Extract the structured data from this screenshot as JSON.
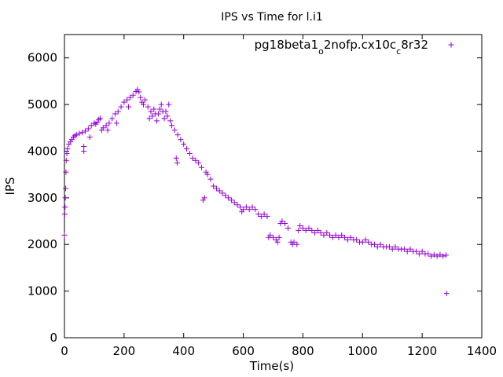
{
  "chart_data": {
    "type": "scatter",
    "title": "IPS vs Time for l.i1",
    "xlabel": "Time(s)",
    "ylabel": "IPS",
    "xlim": [
      0,
      1400
    ],
    "ylim": [
      0,
      6500
    ],
    "x_ticks": [
      0,
      200,
      400,
      600,
      800,
      1000,
      1200,
      1400
    ],
    "y_ticks": [
      0,
      1000,
      2000,
      3000,
      4000,
      5000,
      6000
    ],
    "grid": false,
    "legend_position": "top-right",
    "marker": "plus",
    "series": [
      {
        "name_parts": [
          {
            "text": "pg18beta1",
            "sub": false
          },
          {
            "text": "o",
            "sub": true
          },
          {
            "text": "2nofp.cx10c",
            "sub": false
          },
          {
            "text": "c",
            "sub": true
          },
          {
            "text": "8r32",
            "sub": false
          }
        ],
        "color": "#9400d3",
        "points": [
          [
            0,
            2200
          ],
          [
            1,
            2650
          ],
          [
            2,
            2800
          ],
          [
            3,
            3000
          ],
          [
            4,
            3200
          ],
          [
            5,
            3550
          ],
          [
            6,
            3800
          ],
          [
            8,
            3950
          ],
          [
            10,
            4050
          ],
          [
            15,
            4150
          ],
          [
            20,
            4200
          ],
          [
            25,
            4250
          ],
          [
            30,
            4300
          ],
          [
            35,
            4330
          ],
          [
            40,
            4350
          ],
          [
            50,
            4380
          ],
          [
            60,
            4400
          ],
          [
            65,
            4000
          ],
          [
            65,
            4100
          ],
          [
            70,
            4430
          ],
          [
            80,
            4480
          ],
          [
            85,
            4300
          ],
          [
            90,
            4550
          ],
          [
            100,
            4600
          ],
          [
            105,
            4580
          ],
          [
            110,
            4620
          ],
          [
            115,
            4680
          ],
          [
            120,
            4700
          ],
          [
            125,
            4450
          ],
          [
            130,
            4500
          ],
          [
            140,
            4550
          ],
          [
            145,
            4450
          ],
          [
            150,
            4600
          ],
          [
            160,
            4700
          ],
          [
            170,
            4800
          ],
          [
            175,
            4600
          ],
          [
            180,
            4850
          ],
          [
            190,
            4950
          ],
          [
            200,
            5050
          ],
          [
            210,
            5100
          ],
          [
            215,
            4950
          ],
          [
            220,
            5150
          ],
          [
            230,
            5200
          ],
          [
            240,
            5280
          ],
          [
            245,
            5320
          ],
          [
            250,
            5270
          ],
          [
            255,
            5150
          ],
          [
            260,
            5050
          ],
          [
            265,
            5000
          ],
          [
            270,
            5100
          ],
          [
            280,
            4950
          ],
          [
            285,
            4700
          ],
          [
            290,
            4850
          ],
          [
            295,
            4750
          ],
          [
            300,
            4900
          ],
          [
            305,
            4800
          ],
          [
            310,
            4650
          ],
          [
            315,
            4800
          ],
          [
            320,
            4900
          ],
          [
            325,
            5000
          ],
          [
            330,
            4850
          ],
          [
            335,
            4700
          ],
          [
            340,
            4850
          ],
          [
            345,
            4750
          ],
          [
            350,
            5000
          ],
          [
            355,
            4650
          ],
          [
            360,
            4550
          ],
          [
            370,
            4450
          ],
          [
            375,
            3850
          ],
          [
            378,
            3750
          ],
          [
            380,
            4350
          ],
          [
            390,
            4250
          ],
          [
            400,
            4150
          ],
          [
            410,
            4050
          ],
          [
            420,
            3950
          ],
          [
            430,
            3850
          ],
          [
            440,
            3800
          ],
          [
            450,
            3750
          ],
          [
            460,
            3650
          ],
          [
            465,
            2950
          ],
          [
            470,
            3000
          ],
          [
            475,
            3550
          ],
          [
            480,
            3500
          ],
          [
            490,
            3400
          ],
          [
            500,
            3250
          ],
          [
            510,
            3200
          ],
          [
            520,
            3150
          ],
          [
            530,
            3100
          ],
          [
            540,
            3050
          ],
          [
            550,
            3000
          ],
          [
            560,
            2950
          ],
          [
            570,
            2900
          ],
          [
            580,
            2850
          ],
          [
            590,
            2800
          ],
          [
            595,
            2700
          ],
          [
            600,
            2750
          ],
          [
            610,
            2800
          ],
          [
            620,
            2750
          ],
          [
            630,
            2800
          ],
          [
            640,
            2750
          ],
          [
            650,
            2650
          ],
          [
            660,
            2600
          ],
          [
            670,
            2650
          ],
          [
            680,
            2600
          ],
          [
            685,
            2150
          ],
          [
            690,
            2200
          ],
          [
            700,
            2150
          ],
          [
            710,
            2100
          ],
          [
            715,
            2050
          ],
          [
            720,
            2150
          ],
          [
            725,
            2450
          ],
          [
            730,
            2500
          ],
          [
            740,
            2450
          ],
          [
            750,
            2350
          ],
          [
            760,
            2050
          ],
          [
            765,
            2000
          ],
          [
            770,
            2050
          ],
          [
            780,
            2000
          ],
          [
            785,
            2300
          ],
          [
            790,
            2400
          ],
          [
            800,
            2350
          ],
          [
            810,
            2300
          ],
          [
            820,
            2350
          ],
          [
            830,
            2300
          ],
          [
            840,
            2250
          ],
          [
            850,
            2300
          ],
          [
            860,
            2250
          ],
          [
            870,
            2200
          ],
          [
            880,
            2250
          ],
          [
            890,
            2200
          ],
          [
            900,
            2150
          ],
          [
            910,
            2200
          ],
          [
            920,
            2150
          ],
          [
            930,
            2200
          ],
          [
            940,
            2150
          ],
          [
            950,
            2100
          ],
          [
            960,
            2150
          ],
          [
            970,
            2100
          ],
          [
            980,
            2100
          ],
          [
            990,
            2050
          ],
          [
            1000,
            2050
          ],
          [
            1010,
            2100
          ],
          [
            1020,
            2050
          ],
          [
            1030,
            2000
          ],
          [
            1040,
            2000
          ],
          [
            1050,
            1950
          ],
          [
            1060,
            2000
          ],
          [
            1070,
            1950
          ],
          [
            1080,
            1950
          ],
          [
            1090,
            1950
          ],
          [
            1100,
            1900
          ],
          [
            1110,
            1950
          ],
          [
            1120,
            1900
          ],
          [
            1130,
            1900
          ],
          [
            1140,
            1900
          ],
          [
            1150,
            1850
          ],
          [
            1160,
            1900
          ],
          [
            1170,
            1850
          ],
          [
            1180,
            1850
          ],
          [
            1190,
            1800
          ],
          [
            1200,
            1850
          ],
          [
            1210,
            1800
          ],
          [
            1220,
            1800
          ],
          [
            1230,
            1750
          ],
          [
            1240,
            1780
          ],
          [
            1250,
            1750
          ],
          [
            1260,
            1780
          ],
          [
            1270,
            1750
          ],
          [
            1280,
            1770
          ],
          [
            1282,
            950
          ]
        ]
      }
    ]
  }
}
